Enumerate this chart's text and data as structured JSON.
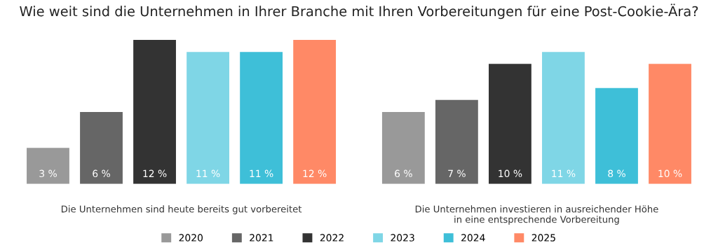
{
  "chart_data": {
    "type": "bar",
    "title": "Wie weit sind die Unternehmen in Ihrer Branche mit Ihren Vorbereitungen für eine Post-Cookie-Ära?",
    "categories": [
      "Die Unternehmen sind heute bereits gut vorbereitet",
      "Die Unternehmen investieren in ausreichender Höhe\nin eine entsprechende Vorbereitung"
    ],
    "series": [
      {
        "name": "2020",
        "color": "#999999",
        "values": [
          3,
          6
        ],
        "value_labels": [
          "3 %",
          "6 %"
        ]
      },
      {
        "name": "2021",
        "color": "#666666",
        "values": [
          6,
          7
        ],
        "value_labels": [
          "6 %",
          "7 %"
        ]
      },
      {
        "name": "2022",
        "color": "#333333",
        "values": [
          12,
          10
        ],
        "value_labels": [
          "12 %",
          "10 %"
        ]
      },
      {
        "name": "2023",
        "color": "#7fd6e6",
        "values": [
          11,
          11
        ],
        "value_labels": [
          "11 %",
          "11 %"
        ]
      },
      {
        "name": "2024",
        "color": "#3ebfd8",
        "values": [
          11,
          8
        ],
        "value_labels": [
          "11 %",
          "8 %"
        ]
      },
      {
        "name": "2025",
        "color": "#ff8966",
        "values": [
          12,
          10
        ],
        "value_labels": [
          "12 %",
          "10 %"
        ]
      }
    ],
    "legend": "bottom",
    "grid": false
  }
}
